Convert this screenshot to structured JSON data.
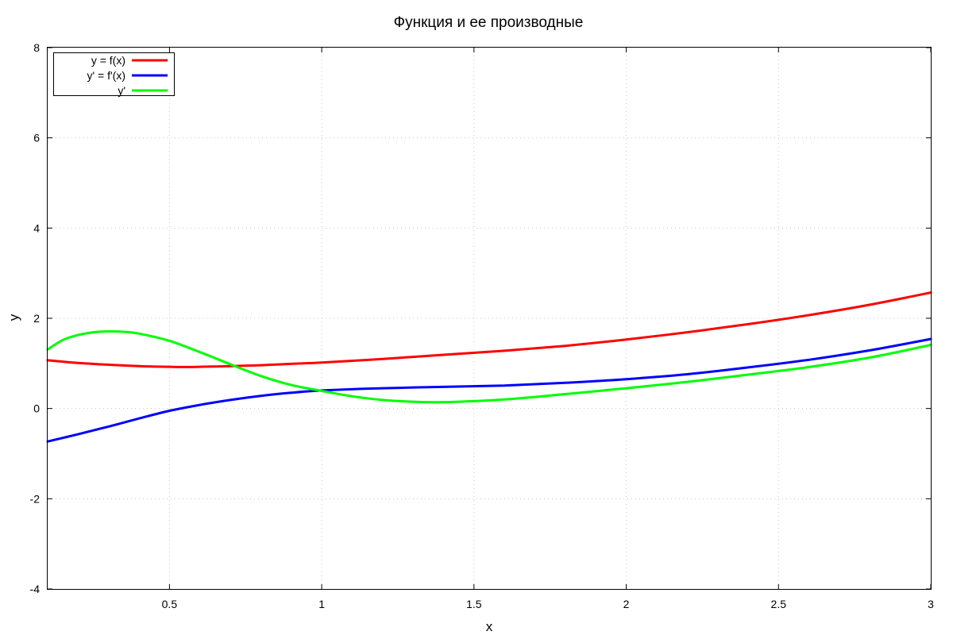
{
  "chart_data": {
    "type": "line",
    "title": "Функция и ее производные",
    "xlabel": "x",
    "ylabel": "y",
    "xlim": [
      0.1,
      3
    ],
    "ylim": [
      -4,
      8
    ],
    "xticks": [
      0.5,
      1,
      1.5,
      2,
      2.5,
      3
    ],
    "xtick_labels": [
      "0.5",
      "1",
      "1.5",
      "2",
      "2.5",
      "3"
    ],
    "yticks": [
      -4,
      -2,
      0,
      2,
      4,
      6,
      8
    ],
    "ytick_labels": [
      "-4",
      "-2",
      "0",
      "2",
      "4",
      "6",
      "8"
    ],
    "grid": true,
    "legend_position": "top-left",
    "series": [
      {
        "name": "y = f(x)",
        "color": "#ff0000",
        "x": [
          0.1,
          0.2,
          0.3,
          0.4,
          0.5,
          0.55,
          0.6,
          0.7,
          0.8,
          0.9,
          1.0,
          1.2,
          1.4,
          1.6,
          1.8,
          2.0,
          2.2,
          2.4,
          2.6,
          2.8,
          3.0
        ],
        "y": [
          1.07,
          1.01,
          0.97,
          0.94,
          0.925,
          0.92,
          0.925,
          0.94,
          0.96,
          0.99,
          1.02,
          1.1,
          1.19,
          1.28,
          1.39,
          1.53,
          1.69,
          1.87,
          2.07,
          2.3,
          2.57
        ]
      },
      {
        "name": "y' = f'(x)",
        "color": "#0000ff",
        "x": [
          0.1,
          0.2,
          0.3,
          0.4,
          0.5,
          0.6,
          0.7,
          0.8,
          0.9,
          1.0,
          1.2,
          1.4,
          1.6,
          1.8,
          2.0,
          2.2,
          2.4,
          2.6,
          2.8,
          3.0
        ],
        "y": [
          -0.73,
          -0.57,
          -0.4,
          -0.22,
          -0.05,
          0.08,
          0.19,
          0.28,
          0.35,
          0.4,
          0.45,
          0.48,
          0.51,
          0.57,
          0.65,
          0.76,
          0.91,
          1.08,
          1.29,
          1.54
        ]
      },
      {
        "name": "y'",
        "color": "#00ff00",
        "x": [
          0.1,
          0.15,
          0.2,
          0.25,
          0.3,
          0.35,
          0.4,
          0.5,
          0.6,
          0.7,
          0.8,
          0.9,
          1.0,
          1.1,
          1.2,
          1.3,
          1.37,
          1.45,
          1.6,
          1.8,
          2.0,
          2.2,
          2.4,
          2.6,
          2.8,
          3.0
        ],
        "y": [
          1.31,
          1.52,
          1.63,
          1.69,
          1.71,
          1.7,
          1.66,
          1.5,
          1.25,
          0.98,
          0.72,
          0.52,
          0.39,
          0.27,
          0.19,
          0.15,
          0.14,
          0.15,
          0.2,
          0.32,
          0.45,
          0.59,
          0.75,
          0.92,
          1.13,
          1.41
        ]
      }
    ]
  }
}
